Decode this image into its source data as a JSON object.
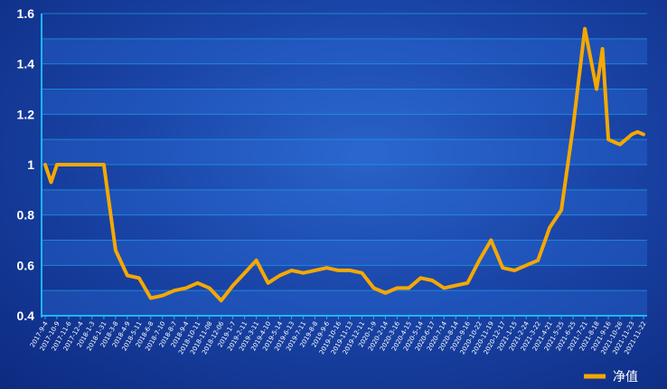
{
  "chart_data": {
    "type": "line",
    "title": "",
    "xlabel": "",
    "ylabel": "",
    "ylim": [
      0.4,
      1.6
    ],
    "y_ticks": [
      "0.4",
      "0.6",
      "0.8",
      "1",
      "1.2",
      "1.4",
      "1.6"
    ],
    "grid": true,
    "legend_position": "bottom-right",
    "x_tick_labels": [
      "2017-9-4",
      "2017-10-9",
      "2017-11-6",
      "2017-12-4",
      "2018-1-3",
      "2018-1-31",
      "2018-3-8",
      "2018-4-9",
      "2018-5-11",
      "2018-6-8",
      "2018-7-10",
      "2018-8-7",
      "2018-9-4",
      "2018-10-11",
      "2018-11-08",
      "2018-12-06",
      "2019-1-7",
      "2019-2-11",
      "2019-3-11",
      "2019-4-10",
      "2019-5-14",
      "2019-6-13",
      "2019-7-11",
      "2019-8-8",
      "2019-9-6",
      "2019-10-16",
      "2019-11-13",
      "2019-12-11",
      "2020-1-9",
      "2020-2-14",
      "2020-3-16",
      "2020-4-15",
      "2020-5-14",
      "2020-6-17",
      "2020-7-14",
      "2020-8-14",
      "2020-9-16",
      "2020-10-22",
      "2020-11-19",
      "2020-12-17",
      "2021-1-15",
      "2021-2-24",
      "2021-3-22",
      "2021-4-21",
      "2021-5-25",
      "2021-6-25",
      "2021-7-21",
      "2021-8-18",
      "2021-9-16",
      "2021-10-26",
      "2021-11-23",
      "2021-11-22"
    ],
    "series": [
      {
        "name": "净值",
        "color": "#f5a800",
        "x": [
          0,
          0.5,
          1,
          1.5,
          2,
          3,
          4,
          5,
          6,
          7,
          8,
          9,
          10,
          11,
          12,
          13,
          14,
          15,
          16,
          17,
          18,
          19,
          20,
          21,
          22,
          23,
          24,
          25,
          26,
          27,
          28,
          29,
          30,
          31,
          32,
          33,
          34,
          35,
          36,
          37,
          38,
          39,
          40,
          41,
          42,
          43,
          44,
          45,
          46,
          47,
          47.5,
          48,
          48.5,
          49,
          49.5,
          50,
          50.5,
          51
        ],
        "values": [
          1.0,
          0.93,
          1.0,
          1.0,
          1.0,
          1.0,
          1.0,
          1.0,
          0.66,
          0.56,
          0.55,
          0.47,
          0.48,
          0.5,
          0.51,
          0.53,
          0.51,
          0.46,
          0.52,
          0.57,
          0.62,
          0.53,
          0.56,
          0.58,
          0.57,
          0.58,
          0.59,
          0.58,
          0.58,
          0.57,
          0.51,
          0.49,
          0.51,
          0.51,
          0.55,
          0.54,
          0.51,
          0.52,
          0.53,
          0.62,
          0.7,
          0.59,
          0.58,
          0.6,
          0.62,
          0.75,
          0.82,
          1.15,
          1.54,
          1.3,
          1.46,
          1.1,
          1.09,
          1.08,
          1.1,
          1.12,
          1.13,
          1.12
        ]
      }
    ]
  },
  "legend": {
    "label": "净值",
    "color": "#f5a800"
  },
  "colors": {
    "axis": "#1fb4ff",
    "grid": "#1e9fe8",
    "band": "#2c6fdc"
  }
}
